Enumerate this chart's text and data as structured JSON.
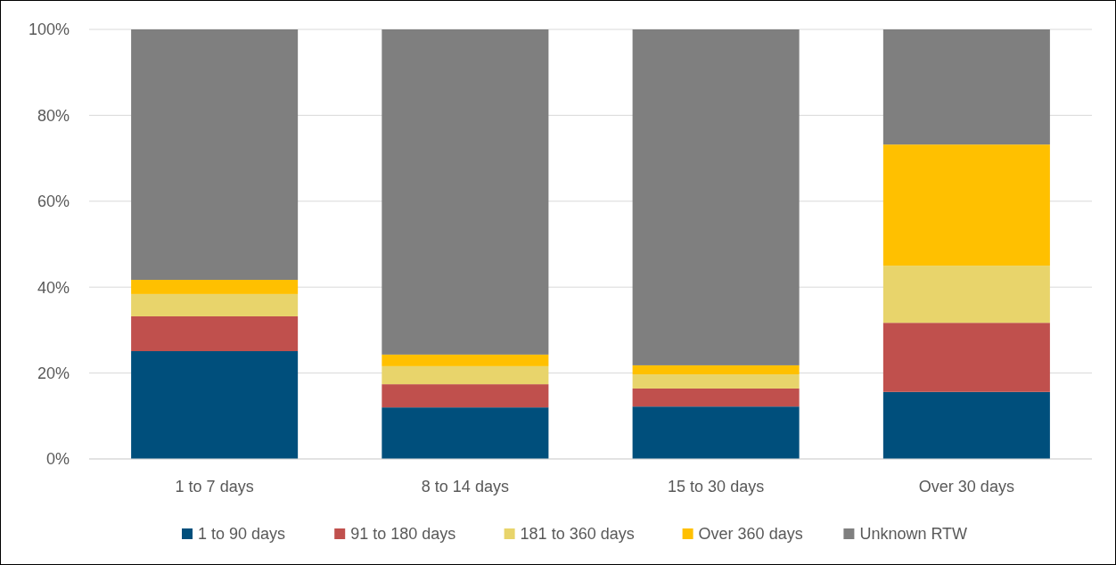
{
  "chart_data": {
    "type": "bar",
    "stacked": true,
    "categories": [
      "1 to 7 days",
      "8 to 14 days",
      "15 to 30 days",
      "Over 30 days"
    ],
    "series": [
      {
        "name": "1 to 90 days",
        "color": "#004f7c",
        "values": [
          25.1,
          12.0,
          12.2,
          15.6
        ]
      },
      {
        "name": "91 to 180 days",
        "color": "#c0504d",
        "values": [
          8.1,
          5.4,
          4.2,
          16.1
        ]
      },
      {
        "name": "181 to 360 days",
        "color": "#e8d46b",
        "values": [
          5.2,
          4.2,
          3.3,
          13.3
        ]
      },
      {
        "name": "Over 360 days",
        "color": "#ffc000",
        "values": [
          3.3,
          2.7,
          2.1,
          28.2
        ]
      },
      {
        "name": "Unknown RTW",
        "color": "#7f7f7f",
        "values": [
          58.3,
          75.7,
          78.2,
          26.8
        ]
      }
    ],
    "ylim": [
      0,
      100
    ],
    "yticks": [
      {
        "value": 0,
        "label": "0%"
      },
      {
        "value": 20,
        "label": "20%"
      },
      {
        "value": 40,
        "label": "40%"
      },
      {
        "value": 60,
        "label": "60%"
      },
      {
        "value": 80,
        "label": "80%"
      },
      {
        "value": 100,
        "label": "100%"
      }
    ],
    "grid": "y",
    "legend": "bottom"
  }
}
